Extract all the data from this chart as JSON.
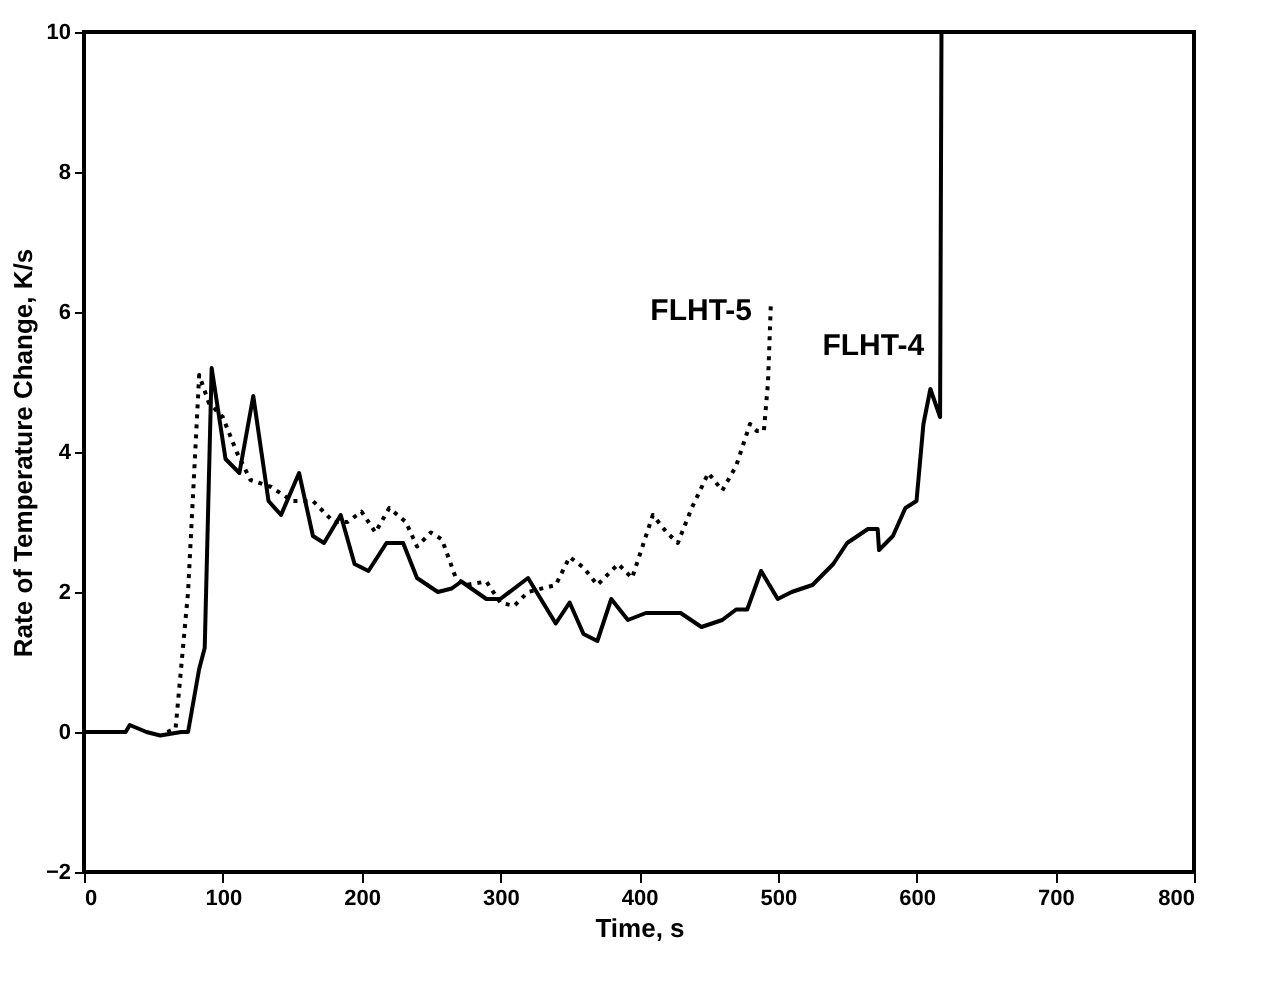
{
  "chart_data": {
    "type": "line",
    "xlabel": "Time, s",
    "ylabel": "Rate of Temperature Change, K/s",
    "xlim": [
      0,
      800
    ],
    "xticks": [
      0,
      100,
      200,
      300,
      400,
      500,
      600,
      700,
      800
    ],
    "ylim": [
      -2,
      10
    ],
    "yticks": [
      -2,
      0,
      2,
      4,
      6,
      8,
      10
    ],
    "grid": false,
    "legend": false,
    "marker": "none",
    "series": [
      {
        "name": "FLHT-4",
        "color": "#000000",
        "line_style": "solid",
        "x": [
          0,
          30,
          33,
          45,
          55,
          70,
          75,
          83,
          87,
          92,
          102,
          112,
          122,
          133,
          142,
          155,
          165,
          173,
          185,
          195,
          205,
          218,
          230,
          240,
          255,
          265,
          272,
          290,
          300,
          320,
          340,
          350,
          360,
          370,
          380,
          392,
          405,
          430,
          445,
          460,
          470,
          478,
          488,
          500,
          510,
          525,
          540,
          550,
          565,
          572,
          573,
          583,
          592,
          600,
          605,
          610,
          617,
          618
        ],
        "values": [
          0,
          0,
          0.1,
          0,
          -0.05,
          0,
          0,
          0.9,
          1.2,
          5.2,
          3.9,
          3.7,
          4.8,
          3.3,
          3.1,
          3.7,
          2.8,
          2.7,
          3.1,
          2.4,
          2.3,
          2.7,
          2.7,
          2.2,
          2.0,
          2.05,
          2.15,
          1.9,
          1.9,
          2.2,
          1.55,
          1.85,
          1.4,
          1.3,
          1.9,
          1.6,
          1.7,
          1.7,
          1.5,
          1.6,
          1.75,
          1.75,
          2.3,
          1.9,
          2.0,
          2.1,
          2.4,
          2.7,
          2.9,
          2.9,
          2.6,
          2.8,
          3.2,
          3.3,
          4.4,
          4.9,
          4.5,
          10
        ]
      },
      {
        "name": "FLHT-5",
        "color": "#000000",
        "line_style": "dotted",
        "x": [
          60,
          66,
          75,
          83,
          90,
          100,
          110,
          120,
          135,
          150,
          165,
          180,
          190,
          200,
          210,
          220,
          232,
          240,
          250,
          258,
          268,
          275,
          290,
          300,
          310,
          320,
          340,
          350,
          360,
          370,
          385,
          395,
          410,
          420,
          428,
          438,
          450,
          460,
          470,
          480,
          485,
          490,
          493,
          495
        ],
        "values": [
          0,
          0.05,
          2,
          5.1,
          4.7,
          4.5,
          4.0,
          3.6,
          3.5,
          3.3,
          3.3,
          3.0,
          3.0,
          3.15,
          2.85,
          3.2,
          3.0,
          2.65,
          2.85,
          2.75,
          2.2,
          2.1,
          2.15,
          1.85,
          1.8,
          2.0,
          2.1,
          2.5,
          2.35,
          2.1,
          2.4,
          2.2,
          3.1,
          2.85,
          2.7,
          3.2,
          3.7,
          3.45,
          3.8,
          4.4,
          4.3,
          4.3,
          5.0,
          6.1
        ]
      }
    ]
  }
}
